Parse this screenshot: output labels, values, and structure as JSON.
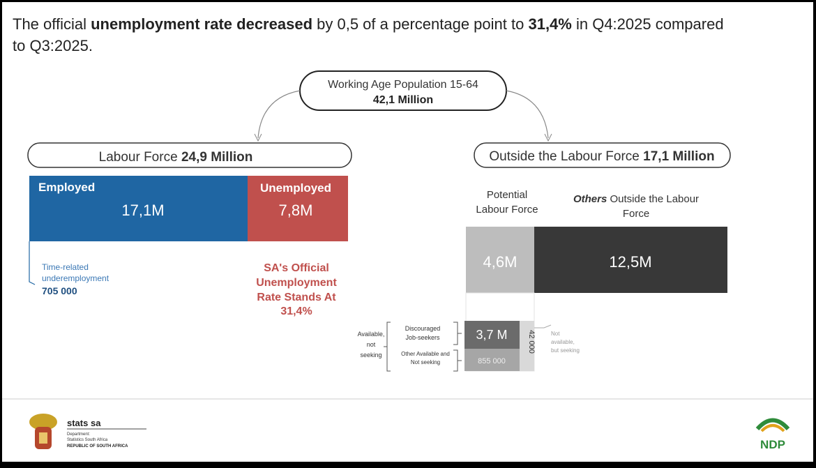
{
  "title": {
    "parts": [
      "The official ",
      "unemployment rate decreased",
      " by 0,5 of a percentage point to ",
      "31,4%",
      " in Q4:2025 compared",
      "to Q3:2025."
    ]
  },
  "working_age": {
    "label": "Working Age Population 15-64",
    "value": "42,1 Million"
  },
  "labour_force": {
    "label": "Labour Force ",
    "value": "24,9 Million",
    "employed": {
      "label": "Employed",
      "value": "17,1M"
    },
    "unemployed": {
      "label": "Unemployed",
      "value": "7,8M"
    },
    "underemployment": {
      "lines": [
        "Time-related",
        "underemployment"
      ],
      "value": "705 000"
    },
    "rate_note": [
      "SA's Official",
      "Unemployment",
      "Rate Stands At",
      "31,4%"
    ]
  },
  "outside": {
    "label": "Outside the Labour Force ",
    "value": "17,1 Million",
    "potential": {
      "lines": [
        "Potential",
        "Labour Force"
      ],
      "value": "4,6M"
    },
    "others": {
      "bold": "Others",
      "lines": [
        " Outside the Labour",
        "Force"
      ],
      "value": "12,5M"
    },
    "breakdown": {
      "available_not_seeking": [
        "Available,",
        "not",
        "seeking"
      ],
      "discouraged": {
        "lines": [
          "Discouraged",
          "Job-seekers"
        ],
        "value": "3,7 M"
      },
      "other_available": {
        "lines": [
          "Other Available and",
          "Not seeking"
        ],
        "value": "855 000"
      },
      "not_available": {
        "lines": [
          "Not",
          "available,",
          "but seeking"
        ],
        "value": "42 000"
      }
    }
  },
  "footer": {
    "org": "stats sa",
    "dept": [
      "Department:",
      "Statistics South Africa",
      "REPUBLIC OF SOUTH AFRICA"
    ],
    "ndp": "NDP"
  }
}
